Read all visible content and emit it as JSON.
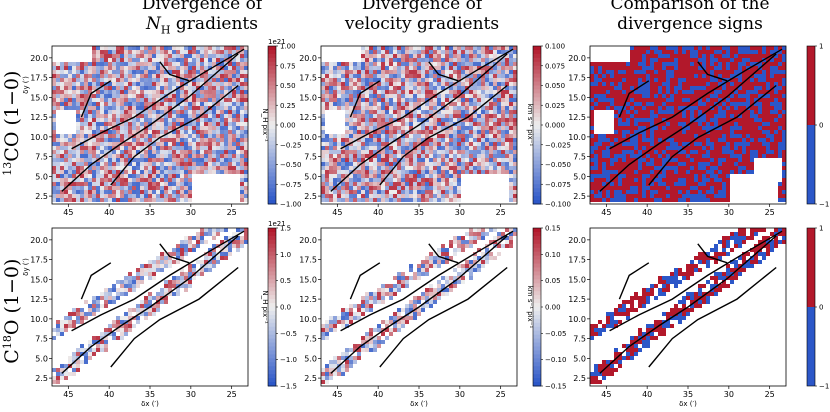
{
  "columns": [
    {
      "title_line1": "Divergence of",
      "title_line2": "N",
      "title_sub": "H",
      "title_rest": " gradients"
    },
    {
      "title_line1": "Divergence of",
      "title_line2": "velocity gradients",
      "title_sub": "",
      "title_rest": ""
    },
    {
      "title_line1": "Comparison of the",
      "title_line2": "divergence signs",
      "title_sub": "",
      "title_rest": ""
    }
  ],
  "rows": [
    {
      "label": "13CO (1−0)",
      "sup": "13",
      "text": "CO (1−0)"
    },
    {
      "label": "C18O (1−0)",
      "pre": "C",
      "sup": "18",
      "text": "O (1−0)"
    }
  ],
  "axes": {
    "xlabel": "δx (′)",
    "ylabel": "δy (′)",
    "xticks": [
      "45",
      "40",
      "35",
      "30",
      "25"
    ],
    "yticks": [
      "2.5",
      "5.0",
      "7.5",
      "10.0",
      "12.5",
      "15.0",
      "17.5",
      "20.0"
    ]
  },
  "colorbars": [
    {
      "row": 0,
      "col": 0,
      "label": "N_H pix⁻¹",
      "ticks": [
        "1.00",
        "0.75",
        "0.50",
        "0.25",
        "0.00",
        "−0.25",
        "−0.50",
        "−0.75",
        "−1.00"
      ],
      "exp": "1e21"
    },
    {
      "row": 0,
      "col": 1,
      "label": "km s⁻¹ pix⁻¹",
      "ticks": [
        "0.100",
        "0.075",
        "0.050",
        "0.025",
        "0.000",
        "−0.025",
        "−0.050",
        "−0.075",
        "−0.100"
      ],
      "exp": ""
    },
    {
      "row": 0,
      "col": 2,
      "label": "",
      "ticks": [
        "1",
        "0",
        "−1"
      ],
      "exp": ""
    },
    {
      "row": 1,
      "col": 0,
      "label": "N_H pix⁻¹",
      "ticks": [
        "1.5",
        "1.0",
        "0.5",
        "0.0",
        "−0.5",
        "−1.0",
        "−1.5"
      ],
      "exp": "1e21"
    },
    {
      "row": 1,
      "col": 1,
      "label": "km s⁻¹ pix⁻¹",
      "ticks": [
        "0.15",
        "0.10",
        "0.05",
        "0.00",
        "−0.05",
        "−0.10",
        "−0.15"
      ],
      "exp": ""
    },
    {
      "row": 1,
      "col": 2,
      "label": "",
      "ticks": [
        "1",
        "0",
        "−1"
      ],
      "exp": ""
    }
  ],
  "colors": {
    "positive": "#b2182b",
    "negative": "#2c57c8",
    "neutral": "#f2f2f2",
    "filament": "#000000"
  }
}
